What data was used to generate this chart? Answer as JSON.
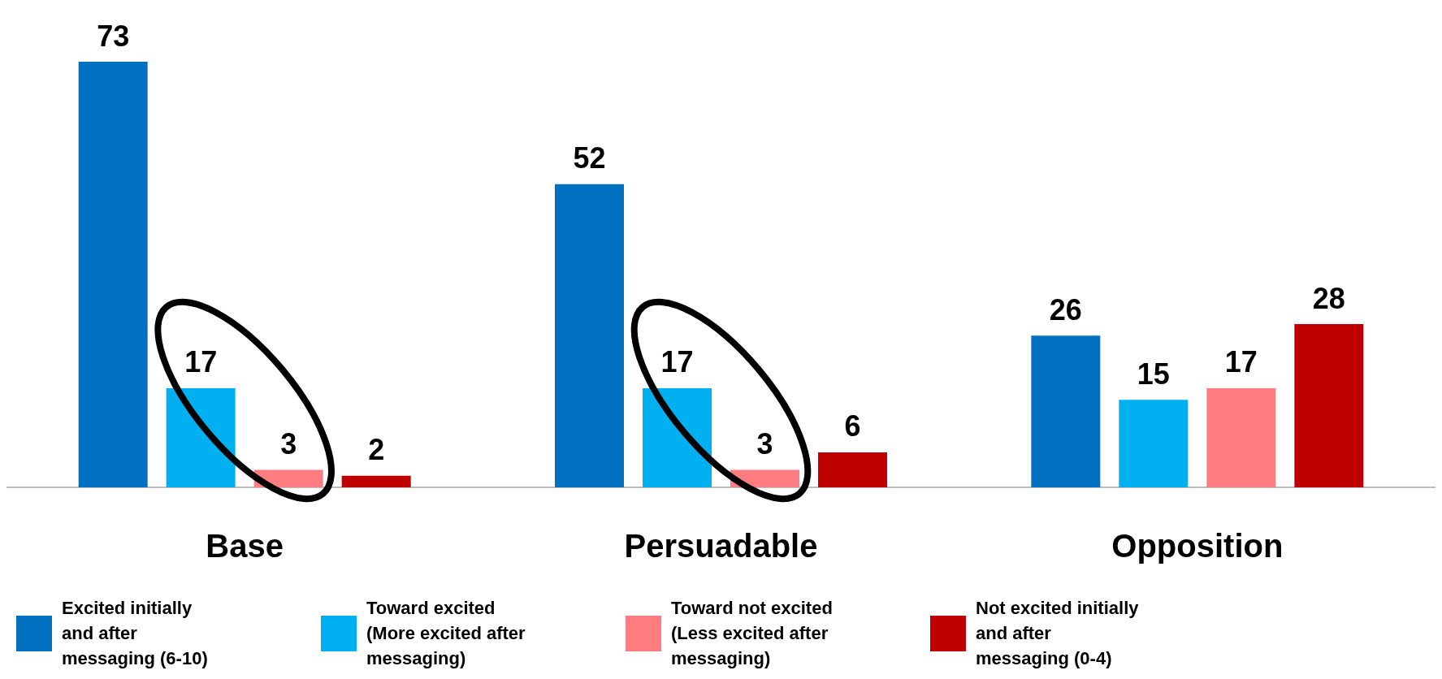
{
  "chart_data": {
    "type": "bar",
    "categories": [
      "Base",
      "Persuadable",
      "Opposition"
    ],
    "series": [
      {
        "name": "Excited initially and after messaging (6-10)",
        "color": "#0070c0",
        "values": [
          73,
          52,
          26
        ]
      },
      {
        "name": "Toward excited (More excited after messaging)",
        "color": "#00b0f0",
        "values": [
          17,
          17,
          15
        ]
      },
      {
        "name": "Toward not excited (Less excited after messaging)",
        "color": "#ff7c80",
        "values": [
          3,
          3,
          17
        ]
      },
      {
        "name": "Not excited initially and after messaging (0-4)",
        "color": "#c00000",
        "values": [
          2,
          6,
          28
        ]
      }
    ],
    "data_labels": true,
    "legend": "bottom"
  }
}
